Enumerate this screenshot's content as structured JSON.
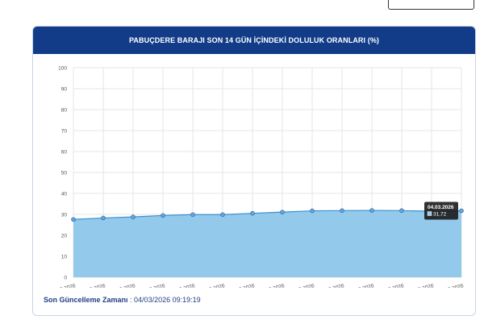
{
  "chart_data": {
    "type": "area",
    "title": "PABUÇDERE BARAJI SON 14 GÜN İÇİNDEKİ DOLULUK ORANLARI (%)",
    "categories": [
      "19.02.2026",
      "20.02.2026",
      "21.02.2026",
      "22.02.2026",
      "23.02.2026",
      "24.02.2026",
      "25.02.2026",
      "26.02.2026",
      "27.02.2026",
      "28.02.2026",
      "01.03.2026",
      "02.03.2026",
      "03.03.2026",
      "04.03.2026"
    ],
    "values": [
      27.6,
      28.3,
      28.8,
      29.5,
      29.9,
      29.9,
      30.5,
      31.1,
      31.7,
      31.8,
      31.9,
      31.8,
      31.5,
      31.72
    ],
    "yticks": [
      0,
      10,
      20,
      30,
      40,
      50,
      60,
      70,
      80,
      90,
      100
    ],
    "ylim": [
      0,
      100
    ],
    "colors": {
      "fill": "#93c9ea",
      "line": "#3a8fd1",
      "point": "#6aa7d8",
      "grid": "#e6e6e6"
    },
    "tooltip": {
      "title": "04.03.2026",
      "value": "31,72"
    },
    "grid": true
  },
  "header": {
    "title": "PABUÇDERE BARAJI SON 14 GÜN İÇİNDEKİ DOLULUK ORANLARI (%)"
  },
  "footer": {
    "label": "Son Güncelleme Zamanı",
    "separator": " : ",
    "value": "04/03/2026 09:19:19"
  }
}
